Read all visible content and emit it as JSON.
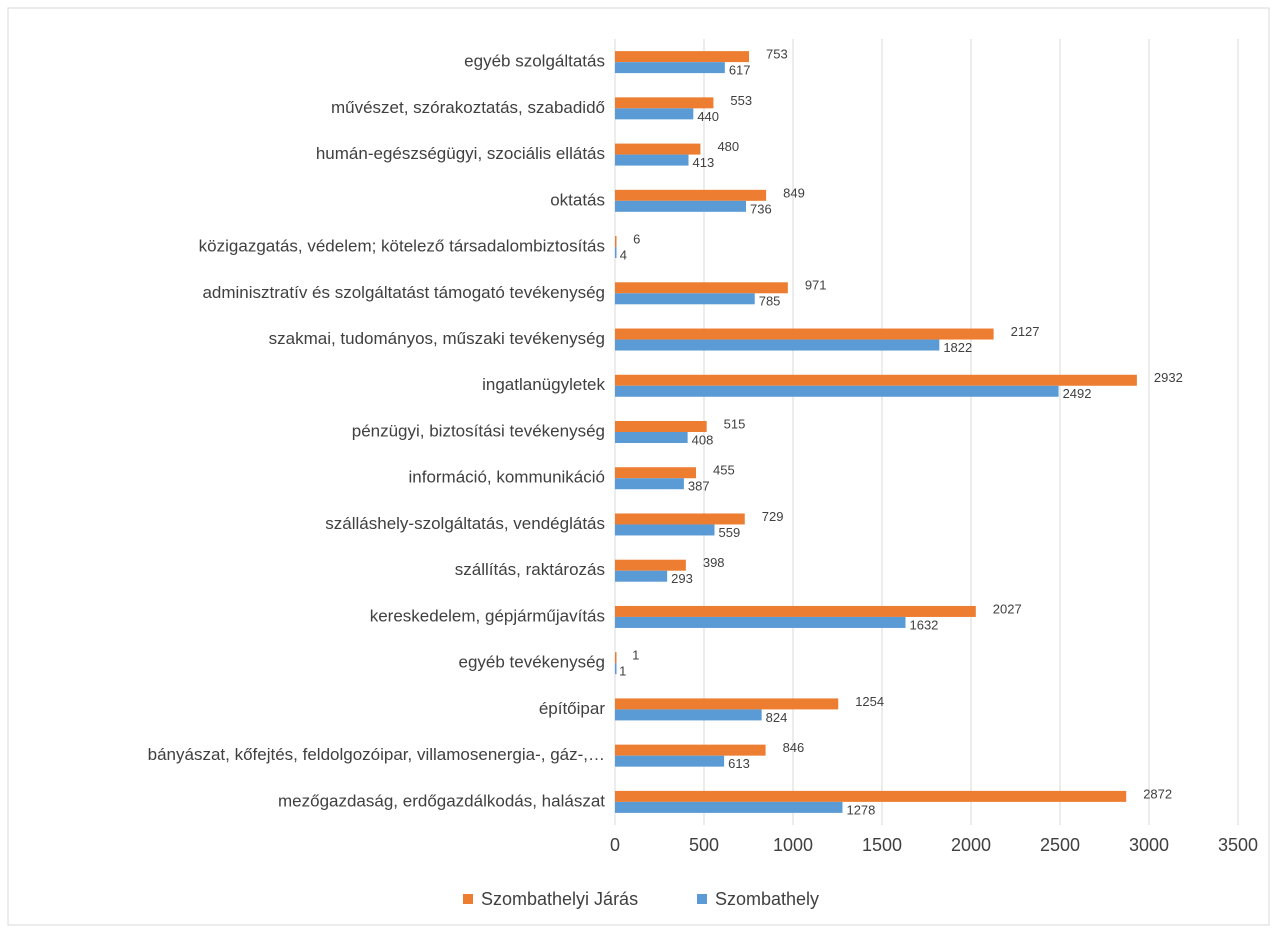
{
  "chart_data": {
    "type": "barh",
    "categories": [
      "egyéb szolgáltatás",
      "művészet, szórakoztatás, szabadidő",
      "humán-egészségügyi, szociális ellátás",
      "oktatás",
      "közigazgatás, védelem; kötelező társadalombiztosítás",
      "adminisztratív és szolgáltatást támogató tevékenység",
      "szakmai, tudományos, műszaki tevékenység",
      "ingatlanügyletek",
      "pénzügyi, biztosítási tevékenység",
      "információ, kommunikáció",
      "szálláshely-szolgáltatás, vendéglátás",
      "szállítás, raktározás",
      "kereskedelem, gépjárműjavítás",
      "egyéb tevékenység",
      "építőipar",
      "bányászat, kőfejtés, feldolgozóipar, villamosenergia-, gáz-,…",
      "mezőgazdaság, erdőgazdálkodás, halászat"
    ],
    "series": [
      {
        "name": "Szombathelyi Járás",
        "color": "#ed7d31",
        "values": [
          753,
          553,
          480,
          849,
          6,
          971,
          2127,
          2932,
          515,
          455,
          729,
          398,
          2027,
          1,
          1254,
          846,
          2872
        ]
      },
      {
        "name": "Szombathely",
        "color": "#5b9bd5",
        "values": [
          617,
          440,
          413,
          736,
          4,
          785,
          1822,
          2492,
          408,
          387,
          559,
          293,
          1632,
          1,
          824,
          613,
          1278
        ]
      }
    ],
    "xlim": [
      0,
      3500
    ],
    "xticks": [
      0,
      500,
      1000,
      1500,
      2000,
      2500,
      3000,
      3500
    ],
    "grid": true,
    "legend": "bottom"
  }
}
